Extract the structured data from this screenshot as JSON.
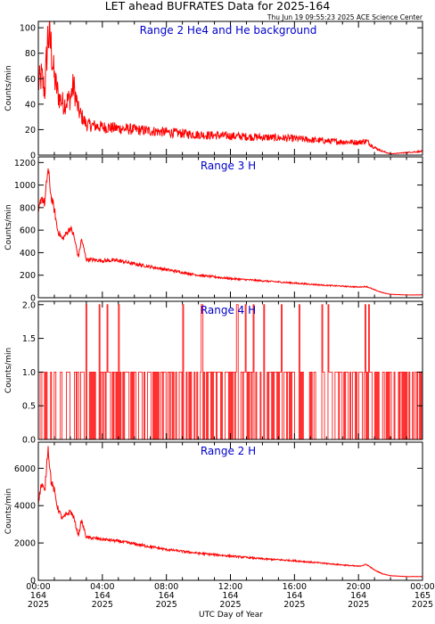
{
  "figure": {
    "title": "LET ahead BUFRATES Data for 2025-164",
    "timestamp": "Thu Jun 19 09:55:23 2025 ACE Science Center",
    "xlabel": "UTC Day of Year"
  },
  "colors": {
    "series": "#ff0000",
    "panel_title": "#0000cc",
    "axis": "#000000"
  },
  "x_axis": {
    "range": [
      0,
      24
    ],
    "ticks": [
      {
        "hour": 0,
        "time": "00:00",
        "day": "164",
        "year": "2025"
      },
      {
        "hour": 4,
        "time": "04:00",
        "day": "164",
        "year": "2025"
      },
      {
        "hour": 8,
        "time": "08:00",
        "day": "164",
        "year": "2025"
      },
      {
        "hour": 12,
        "time": "12:00",
        "day": "164",
        "year": "2025"
      },
      {
        "hour": 16,
        "time": "16:00",
        "day": "164",
        "year": "2025"
      },
      {
        "hour": 20,
        "time": "20:00",
        "day": "164",
        "year": "2025"
      },
      {
        "hour": 24,
        "time": "00:00",
        "day": "165",
        "year": "2025"
      }
    ]
  },
  "chart_data": [
    {
      "type": "line",
      "title": "Range 2 He4 and He background",
      "ylabel": "Counts/min",
      "ylim": [
        0,
        105
      ],
      "yticks": [
        0,
        20,
        40,
        60,
        80,
        100
      ],
      "x_hours": [
        0,
        0.2,
        0.4,
        0.6,
        0.8,
        1.0,
        1.3,
        1.6,
        2.0,
        2.2,
        2.5,
        3.0,
        4,
        5,
        6,
        8,
        10,
        12,
        14,
        16,
        18,
        20,
        20.5,
        21,
        21.5,
        22,
        23,
        24
      ],
      "values": [
        55,
        62,
        50,
        95,
        85,
        60,
        45,
        40,
        45,
        55,
        35,
        24,
        22,
        21,
        20,
        18,
        16,
        15,
        14,
        13,
        11,
        10,
        11,
        6,
        3,
        1,
        2,
        3
      ],
      "noise": 0.22
    },
    {
      "type": "line",
      "title": "Range 3 H",
      "ylabel": "Counts/min",
      "ylim": [
        0,
        1250
      ],
      "yticks": [
        0,
        200,
        400,
        600,
        800,
        1000,
        1200
      ],
      "x_hours": [
        0,
        0.2,
        0.4,
        0.6,
        0.8,
        1.0,
        1.2,
        1.5,
        2.0,
        2.2,
        2.5,
        2.7,
        3.0,
        4,
        5,
        6,
        8,
        10,
        12,
        14,
        16,
        18,
        20,
        20.5,
        21,
        21.5,
        22,
        23,
        24
      ],
      "values": [
        750,
        900,
        830,
        1150,
        900,
        780,
        600,
        520,
        620,
        560,
        360,
        520,
        340,
        330,
        330,
        300,
        250,
        200,
        170,
        150,
        130,
        110,
        95,
        100,
        70,
        45,
        30,
        25,
        25
      ],
      "noise": 0.05
    },
    {
      "type": "line",
      "title": "Range 4 H",
      "ylabel": "Counts/min",
      "ylim": [
        0,
        2.05
      ],
      "yticks": [
        0.0,
        0.5,
        1.0,
        1.5,
        2.0
      ],
      "tick_format": "fixed1",
      "step": true,
      "levels": [
        0,
        1
      ],
      "spikes_hours": [
        2.95,
        3.8,
        4.3,
        5.0,
        9.0,
        10.2,
        12.4,
        12.9,
        13.4,
        14.1,
        15.2,
        16.3,
        17.7,
        18.1,
        20.4,
        20.6
      ],
      "spike_value": 2.0
    },
    {
      "type": "line",
      "title": "Range 2 H",
      "ylabel": "Counts/min",
      "ylim": [
        0,
        7400
      ],
      "yticks": [
        0,
        2000,
        4000,
        6000
      ],
      "x_hours": [
        0,
        0.2,
        0.4,
        0.6,
        0.8,
        1.0,
        1.2,
        1.5,
        2.0,
        2.2,
        2.5,
        2.7,
        3.0,
        4,
        5,
        6,
        8,
        10,
        12,
        14,
        16,
        18,
        20,
        20.5,
        21,
        21.5,
        22,
        23,
        24
      ],
      "values": [
        4200,
        5200,
        4700,
        7200,
        5300,
        4800,
        3900,
        3300,
        3700,
        3400,
        2400,
        3200,
        2300,
        2200,
        2100,
        1950,
        1650,
        1450,
        1300,
        1150,
        1050,
        900,
        750,
        850,
        550,
        350,
        250,
        200,
        200
      ],
      "noise": 0.04
    }
  ]
}
